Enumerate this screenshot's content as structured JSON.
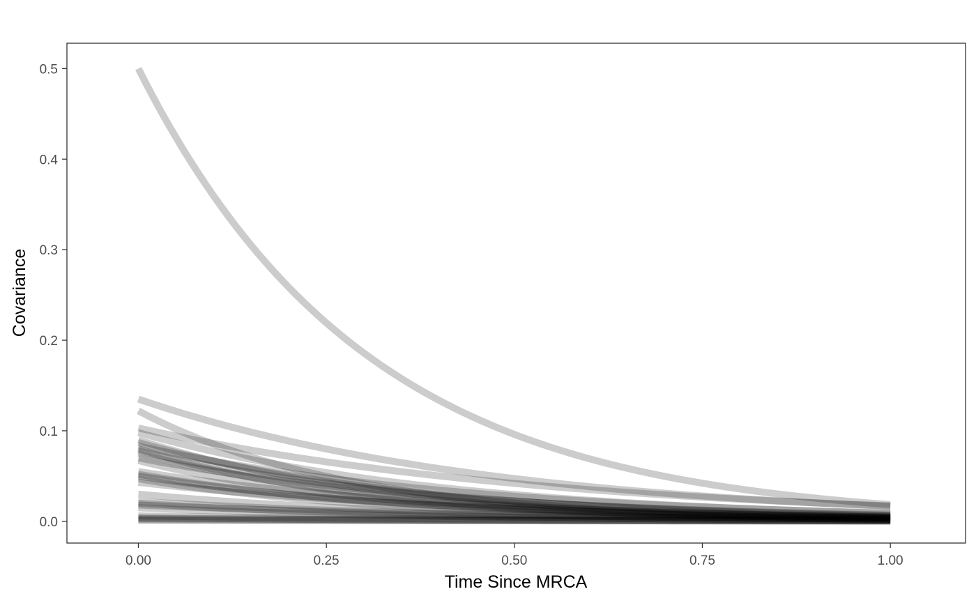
{
  "chart_data": {
    "type": "line",
    "title": "",
    "xlabel": "Time Since MRCA",
    "ylabel": "Covariance",
    "xlim": [
      -0.095,
      1.1
    ],
    "ylim": [
      -0.024,
      0.528
    ],
    "x_ticks": [
      0.0,
      0.25,
      0.5,
      0.75,
      1.0
    ],
    "x_tick_labels": [
      "0.00",
      "0.25",
      "0.50",
      "0.75",
      "1.00"
    ],
    "y_ticks": [
      0.0,
      0.1,
      0.2,
      0.3,
      0.4,
      0.5
    ],
    "y_tick_labels": [
      "0.0",
      "0.1",
      "0.2",
      "0.3",
      "0.4",
      "0.5"
    ],
    "grid": false,
    "legend": "none",
    "line_color": "#000000",
    "line_opacity": 0.2,
    "model": "covariance = c0 * exp(-k * t)",
    "series": [
      {
        "c0": 0.5,
        "k": 3.3
      },
      {
        "c0": 0.135,
        "k": 2.1
      },
      {
        "c0": 0.122,
        "k": 3.6
      },
      {
        "c0": 0.103,
        "k": 1.8
      },
      {
        "c0": 0.098,
        "k": 2.4
      },
      {
        "c0": 0.09,
        "k": 3.0
      },
      {
        "c0": 0.087,
        "k": 2.7
      },
      {
        "c0": 0.083,
        "k": 2.2
      },
      {
        "c0": 0.08,
        "k": 3.3
      },
      {
        "c0": 0.078,
        "k": 2.5
      },
      {
        "c0": 0.075,
        "k": 2.9
      },
      {
        "c0": 0.07,
        "k": 2.3
      },
      {
        "c0": 0.067,
        "k": 3.1
      },
      {
        "c0": 0.055,
        "k": 2.4
      },
      {
        "c0": 0.052,
        "k": 2.8
      },
      {
        "c0": 0.05,
        "k": 2.6
      },
      {
        "c0": 0.047,
        "k": 3.0
      },
      {
        "c0": 0.043,
        "k": 2.2
      },
      {
        "c0": 0.03,
        "k": 2.6
      },
      {
        "c0": 0.022,
        "k": 2.3
      },
      {
        "c0": 0.02,
        "k": 2.8
      },
      {
        "c0": 0.018,
        "k": 2.0
      },
      {
        "c0": 0.015,
        "k": 2.5
      },
      {
        "c0": 0.006,
        "k": 2.0
      },
      {
        "c0": 0.004,
        "k": 2.5
      },
      {
        "c0": 0.003,
        "k": 1.5
      },
      {
        "c0": 0.002,
        "k": 2.0
      },
      {
        "c0": 0.001,
        "k": 1.0
      }
    ]
  }
}
